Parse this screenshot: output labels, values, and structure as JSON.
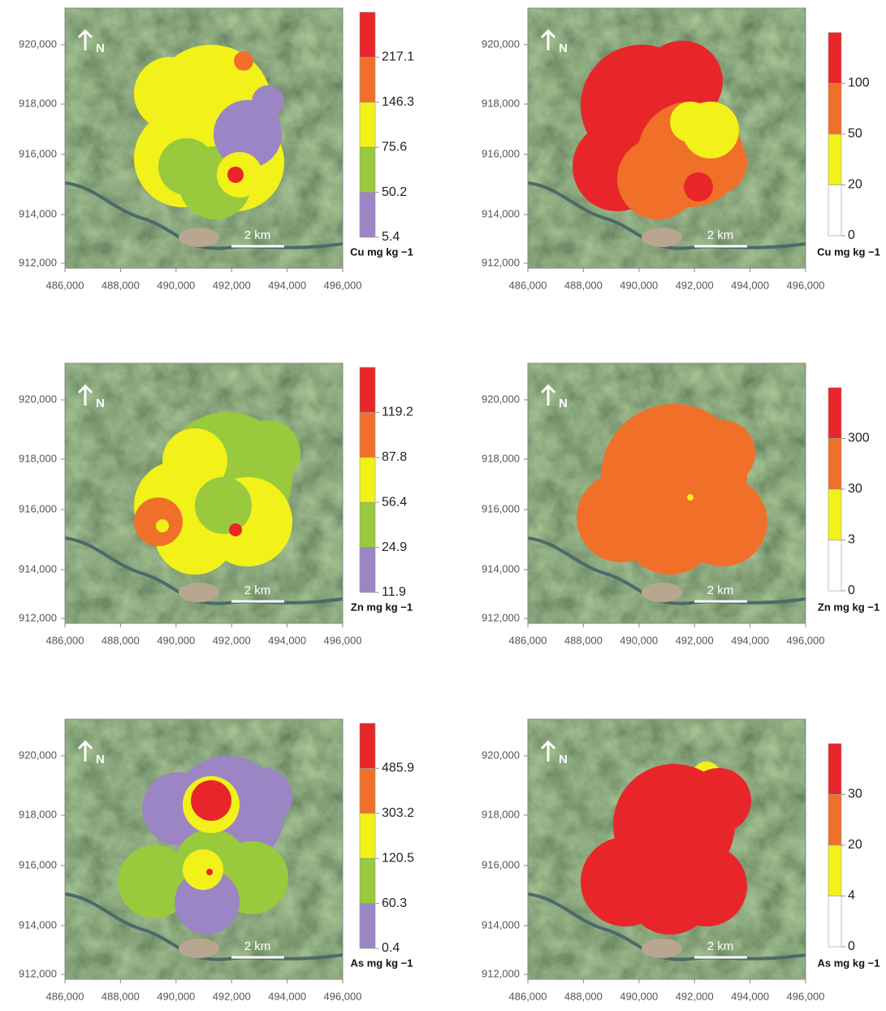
{
  "panels": [
    {
      "x_ticks": [
        "486,000",
        "488,000",
        "490,000",
        "492,000",
        "494,000",
        "496,000"
      ],
      "y_ticks": [
        "920,000",
        "918,000",
        "916,000",
        "914,000",
        "912,000"
      ],
      "legend_labels": [
        "217.1",
        "146.3",
        "75.6",
        "50.2",
        "5.4"
      ],
      "legend_colors": [
        "#e8262a",
        "#f0702a",
        "#f2f21a",
        "#99c93c",
        "#9b85c4"
      ],
      "legend_title": "Cu mg kg −1",
      "scale_bar": "2 km",
      "north": "N"
    },
    {
      "x_ticks": [
        "486,000",
        "488,000",
        "490,000",
        "492,000",
        "494,000",
        "496,000"
      ],
      "y_ticks": [
        "920,000",
        "918,000",
        "916,000",
        "914,000",
        "912,000"
      ],
      "legend_labels": [
        "100",
        "50",
        "20",
        "0"
      ],
      "legend_colors": [
        "#e8262a",
        "#f0702a",
        "#f2f21a",
        "#ffffff"
      ],
      "legend_title": "Cu mg kg −1",
      "scale_bar": "2 km",
      "north": "N"
    },
    {
      "x_ticks": [
        "486,000",
        "488,000",
        "490,000",
        "492,000",
        "494,000",
        "496,000"
      ],
      "y_ticks": [
        "920,000",
        "918,000",
        "916,000",
        "914,000",
        "912,000"
      ],
      "legend_labels": [
        "119.2",
        "87.8",
        "56.4",
        "24.9",
        "11.9"
      ],
      "legend_colors": [
        "#e8262a",
        "#f0702a",
        "#f2f21a",
        "#99c93c",
        "#9b85c4"
      ],
      "legend_title": "Zn mg kg −1",
      "scale_bar": "2 km",
      "north": "N"
    },
    {
      "x_ticks": [
        "486,000",
        "488,000",
        "490,000",
        "492,000",
        "494,000",
        "496,000"
      ],
      "y_ticks": [
        "920,000",
        "918,000",
        "916,000",
        "914,000",
        "912,000"
      ],
      "legend_labels": [
        "300",
        "30",
        "3",
        "0"
      ],
      "legend_colors": [
        "#e8262a",
        "#f0702a",
        "#f2f21a",
        "#ffffff"
      ],
      "legend_title": "Zn mg kg −1",
      "scale_bar": "2 km",
      "north": "N"
    },
    {
      "x_ticks": [
        "486,000",
        "488,000",
        "490,000",
        "492,000",
        "494,000",
        "496,000"
      ],
      "y_ticks": [
        "920,000",
        "918,000",
        "916,000",
        "914,000",
        "912,000"
      ],
      "legend_labels": [
        "485.9",
        "303.2",
        "120.5",
        "60.3",
        "0.4"
      ],
      "legend_colors": [
        "#e8262a",
        "#f0702a",
        "#f2f21a",
        "#99c93c",
        "#9b85c4"
      ],
      "legend_title": "As mg kg −1",
      "scale_bar": "2 km",
      "north": "N"
    },
    {
      "x_ticks": [
        "486,000",
        "488,000",
        "490,000",
        "492,000",
        "494,000",
        "496,000"
      ],
      "y_ticks": [
        "920,000",
        "918,000",
        "916,000",
        "914,000",
        "912,000"
      ],
      "legend_labels": [
        "30",
        "20",
        "4",
        "0"
      ],
      "legend_colors": [
        "#e8262a",
        "#f0702a",
        "#f2f21a",
        "#ffffff"
      ],
      "legend_title": "As mg kg −1",
      "scale_bar": "2 km",
      "north": "N"
    }
  ]
}
